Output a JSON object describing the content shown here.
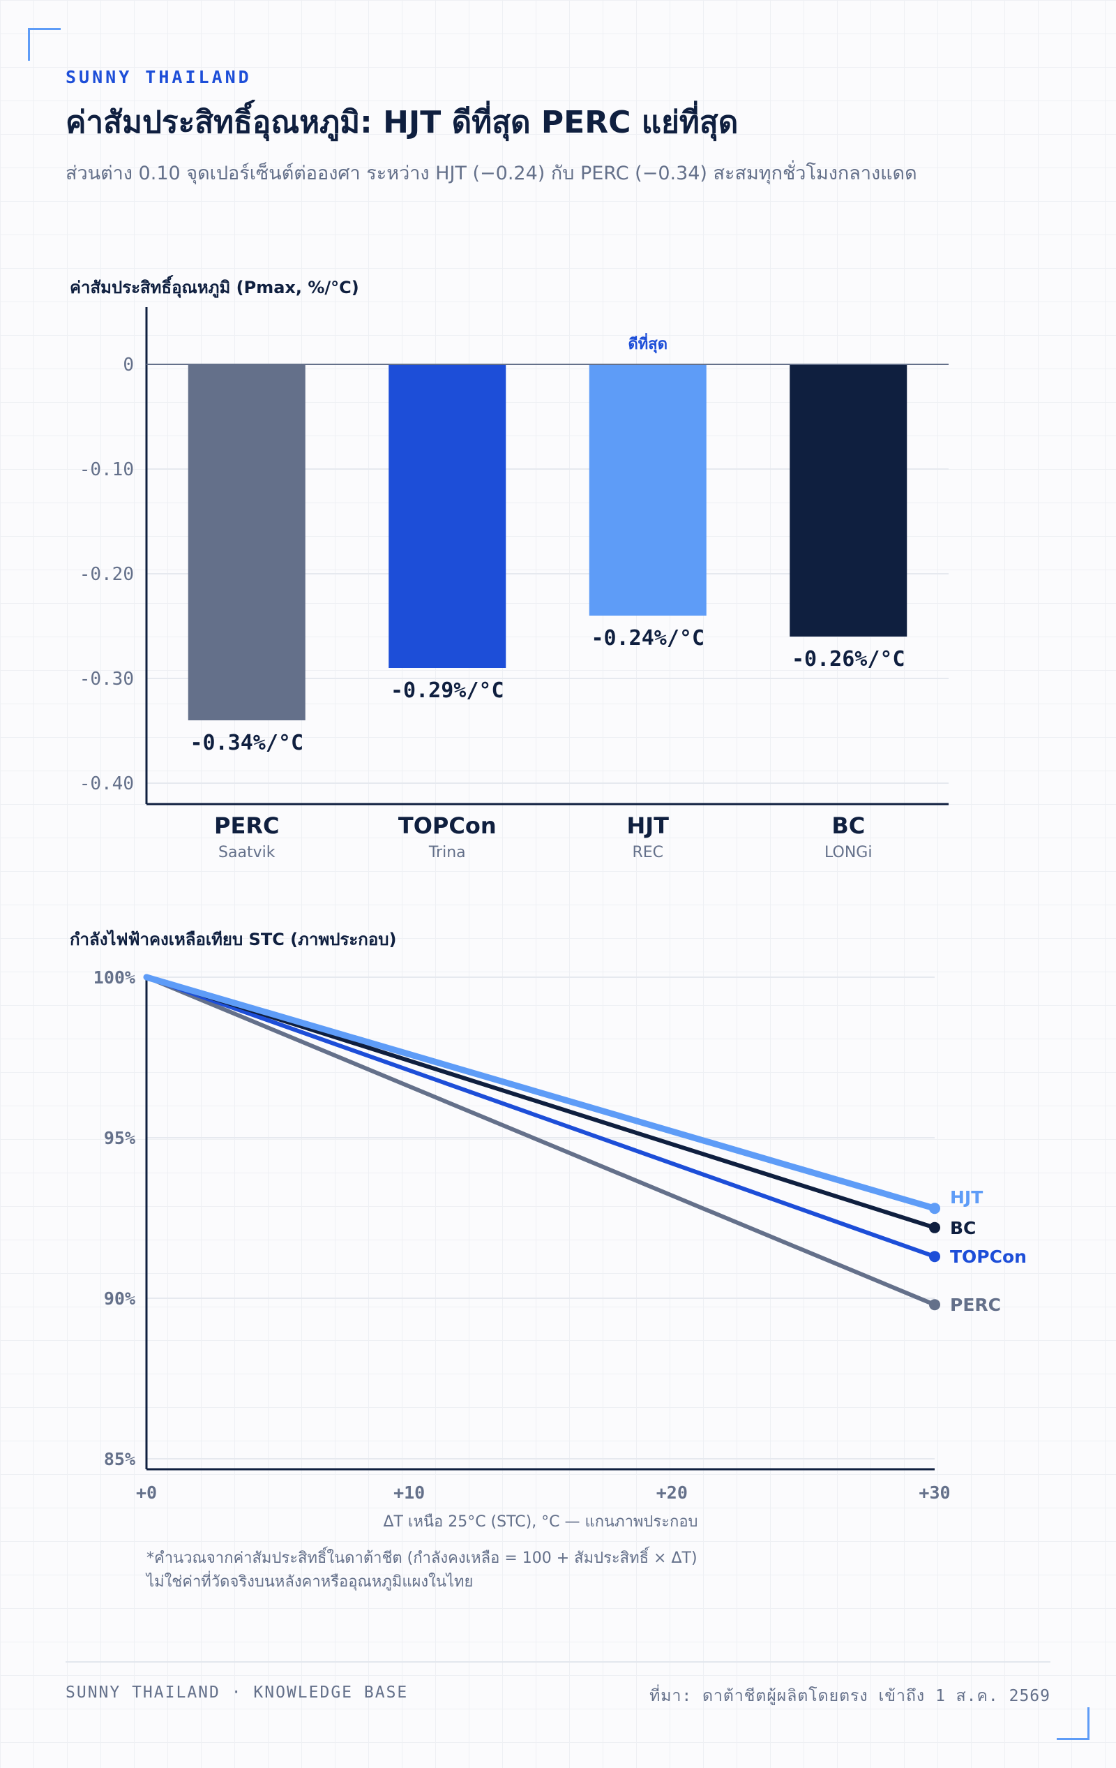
{
  "brand": "SUNNY THAILAND",
  "title": "ค่าสัมประสิทธิ์อุณหภูมิ: HJT ดีที่สุด PERC แย่ที่สุด",
  "subtitle": "ส่วนต่าง 0.10 จุดเปอร์เซ็นต์ต่อองศา ระหว่าง HJT (−0.24) กับ PERC (−0.34) สะสมทุกชั่วโมงกลางแดด",
  "footnote": {
    "line1": "*คำนวณจากค่าสัมประสิทธิ์ในดาต้าชีต (กำลังคงเหลือ = 100 + สัมประสิทธิ์ × ΔT)",
    "line2": "ไม่ใช่ค่าที่วัดจริงบนหลังคาหรืออุณหภูมิแผงในไทย"
  },
  "footer": {
    "left": "SUNNY THAILAND · KNOWLEDGE BASE",
    "right": "ที่มา: ดาต้าชีตผู้ผลิตโดยตรง เข้าถึง 1 ส.ค. 2569"
  },
  "chart_data": [
    {
      "type": "bar",
      "title": "ค่าสัมประสิทธิ์อุณหภูมิ (Pmax, %/°C)",
      "categories": [
        "PERC",
        "TOPCon",
        "HJT",
        "BC"
      ],
      "category_sublabels": [
        "Saatvik",
        "Trina",
        "REC",
        "LONGi"
      ],
      "values": [
        -0.34,
        -0.29,
        -0.24,
        -0.26
      ],
      "data_labels": [
        "-0.34%/°C",
        "-0.29%/°C",
        "-0.24%/°C",
        "-0.26%/°C"
      ],
      "colors": [
        "#64708a",
        "#1d4ed8",
        "#5e9cf7",
        "#0f1f3f"
      ],
      "annotation": {
        "category": "HJT",
        "text": "ดีที่สุด"
      },
      "yticks": [
        "0",
        "-0.10",
        "-0.20",
        "-0.30",
        "-0.40"
      ],
      "ylim": [
        -0.42,
        0.05
      ],
      "grid": true
    },
    {
      "type": "line",
      "title": "กำลังไฟฟ้าคงเหลือเทียบ STC (ภาพประกอบ)",
      "xlabel": "ΔT เหนือ 25°C (STC), °C — แกนภาพประกอบ",
      "x": [
        0,
        30
      ],
      "xticks": [
        "+0",
        "+10",
        "+20",
        "+30"
      ],
      "xtick_values": [
        0,
        10,
        20,
        30
      ],
      "yticks": [
        "100%",
        "95%",
        "90%",
        "85%"
      ],
      "ytick_values": [
        100,
        95,
        90,
        85
      ],
      "xlim": [
        0,
        30
      ],
      "ylim": [
        85,
        100
      ],
      "grid": true,
      "series": [
        {
          "name": "HJT",
          "values": [
            100,
            92.8
          ],
          "color": "#5e9cf7"
        },
        {
          "name": "BC",
          "values": [
            100,
            92.2
          ],
          "color": "#0f1f3f"
        },
        {
          "name": "TOPCon",
          "values": [
            100,
            91.3
          ],
          "color": "#1d4ed8"
        },
        {
          "name": "PERC",
          "values": [
            100,
            89.8
          ],
          "color": "#64708a"
        }
      ]
    }
  ]
}
